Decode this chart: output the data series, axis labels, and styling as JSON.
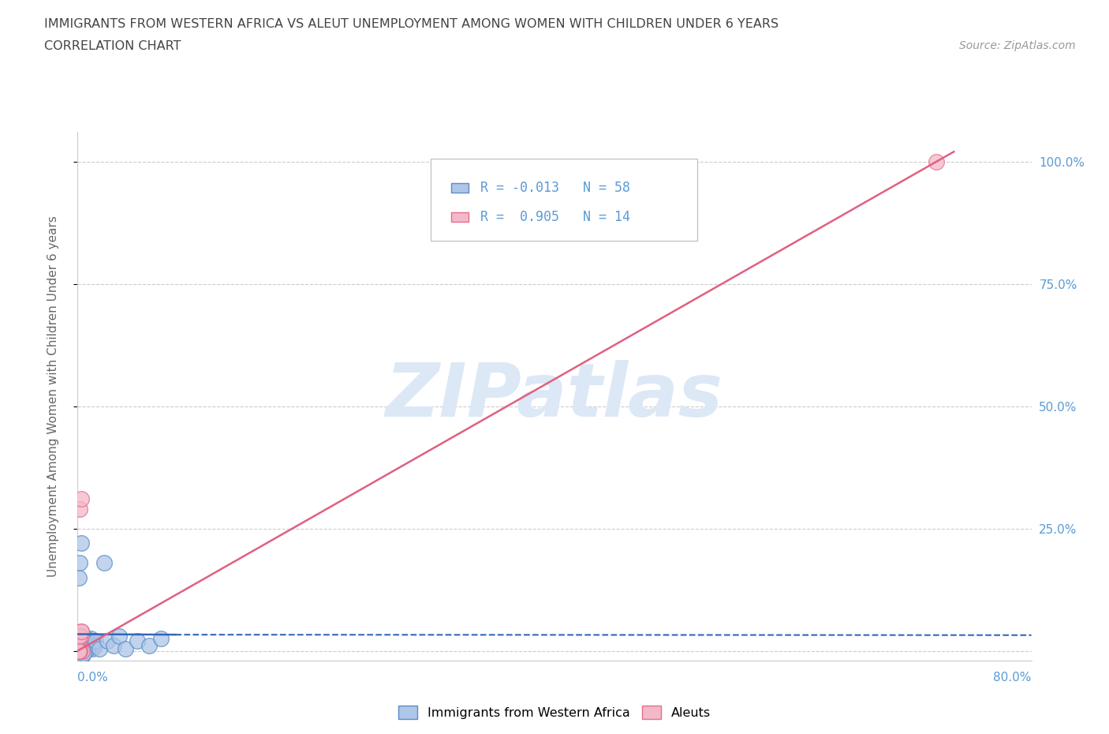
{
  "title_line1": "IMMIGRANTS FROM WESTERN AFRICA VS ALEUT UNEMPLOYMENT AMONG WOMEN WITH CHILDREN UNDER 6 YEARS",
  "title_line2": "CORRELATION CHART",
  "source_text": "Source: ZipAtlas.com",
  "ylabel": "Unemployment Among Women with Children Under 6 years",
  "legend_blue_label": "Immigrants from Western Africa",
  "legend_pink_label": "Aleuts",
  "blue_r_text": "R = -0.013",
  "blue_n_text": "N = 58",
  "pink_r_text": "R =  0.905",
  "pink_n_text": "N = 14",
  "xlim": [
    0.0,
    0.8
  ],
  "ylim": [
    -0.02,
    1.06
  ],
  "yticks": [
    0.0,
    0.25,
    0.5,
    0.75,
    1.0
  ],
  "ytick_labels_right": [
    "",
    "25.0%",
    "50.0%",
    "75.0%",
    "100.0%"
  ],
  "blue_scatter_color": "#aec6e8",
  "blue_scatter_edge": "#5b8dc8",
  "blue_line_color": "#3366bb",
  "pink_scatter_color": "#f5b8c8",
  "pink_scatter_edge": "#e07090",
  "pink_line_color": "#e06080",
  "watermark_text": "ZIPatlas",
  "watermark_color": "#dce8f5",
  "background_color": "#ffffff",
  "grid_color": "#cccccc",
  "axis_color": "#cccccc",
  "label_color": "#5b9bd5",
  "title_color": "#444444",
  "source_color": "#999999",
  "blue_x": [
    0.001,
    0.002,
    0.003,
    0.004,
    0.005,
    0.006,
    0.007,
    0.008,
    0.009,
    0.01,
    0.011,
    0.012,
    0.013,
    0.014,
    0.002,
    0.003,
    0.004,
    0.005,
    0.006,
    0.001,
    0.002,
    0.003,
    0.001,
    0.002,
    0.003,
    0.004,
    0.005,
    0.006,
    0.007,
    0.008,
    0.001,
    0.002,
    0.003,
    0.004,
    0.005,
    0.001,
    0.002,
    0.003,
    0.004,
    0.015,
    0.018,
    0.022,
    0.025,
    0.03,
    0.035,
    0.04,
    0.05,
    0.06,
    0.07,
    0.001,
    0.002,
    0.003,
    0.004,
    0.001,
    0.002,
    0.003,
    0.004,
    0.005
  ],
  "blue_y": [
    0.02,
    0.01,
    0.03,
    0.005,
    0.02,
    0.01,
    0.025,
    0.005,
    0.015,
    0.01,
    0.025,
    0.005,
    0.02,
    0.01,
    0.03,
    0.005,
    0.02,
    0.01,
    0.025,
    0.15,
    0.18,
    0.22,
    0.02,
    0.01,
    0.03,
    0.005,
    0.02,
    0.01,
    0.025,
    0.005,
    0.02,
    0.01,
    0.03,
    0.005,
    0.02,
    0.02,
    0.01,
    0.03,
    0.005,
    0.02,
    0.005,
    0.18,
    0.02,
    0.01,
    0.03,
    0.005,
    0.02,
    0.01,
    0.025,
    -0.005,
    -0.01,
    -0.005,
    -0.01,
    -0.005,
    -0.01,
    -0.005,
    -0.01,
    -0.005
  ],
  "pink_x": [
    0.001,
    0.002,
    0.003,
    0.004,
    0.002,
    0.003,
    0.001,
    0.002,
    0.003,
    0.001,
    0.002,
    0.001,
    0.003,
    0.72
  ],
  "pink_y": [
    0.0,
    0.0,
    0.03,
    0.0,
    0.29,
    0.31,
    0.03,
    0.0,
    0.04,
    0.0,
    0.03,
    0.0,
    0.04,
    1.0
  ],
  "blue_line_x": [
    0.0,
    0.08,
    0.8
  ],
  "blue_line_y": [
    0.035,
    0.033,
    0.032
  ],
  "blue_line_dash_start": 0.08,
  "pink_line_x0": 0.0,
  "pink_line_y0": 0.0,
  "pink_line_x1": 0.735,
  "pink_line_y1": 1.02
}
